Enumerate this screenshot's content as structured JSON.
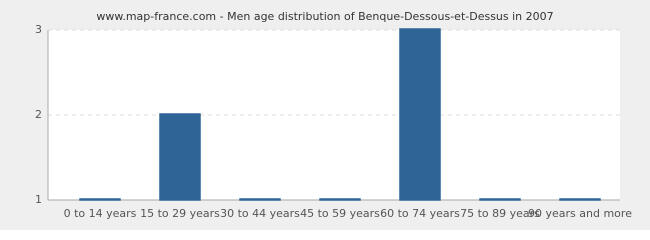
{
  "chart_data": {
    "type": "bar",
    "title": "www.map-france.com - Men age distribution of Benque-Dessous-et-Dessus in 2007",
    "categories": [
      "0 to 14 years",
      "15 to 29 years",
      "30 to 44 years",
      "45 to 59 years",
      "60 to 74 years",
      "75 to 89 years",
      "90 years and more"
    ],
    "values": [
      1,
      2,
      1,
      1,
      3,
      1,
      1
    ],
    "color": "#2e6496",
    "ylim": [
      1,
      3
    ],
    "yticks": [
      1,
      2,
      3
    ],
    "grid": true
  }
}
